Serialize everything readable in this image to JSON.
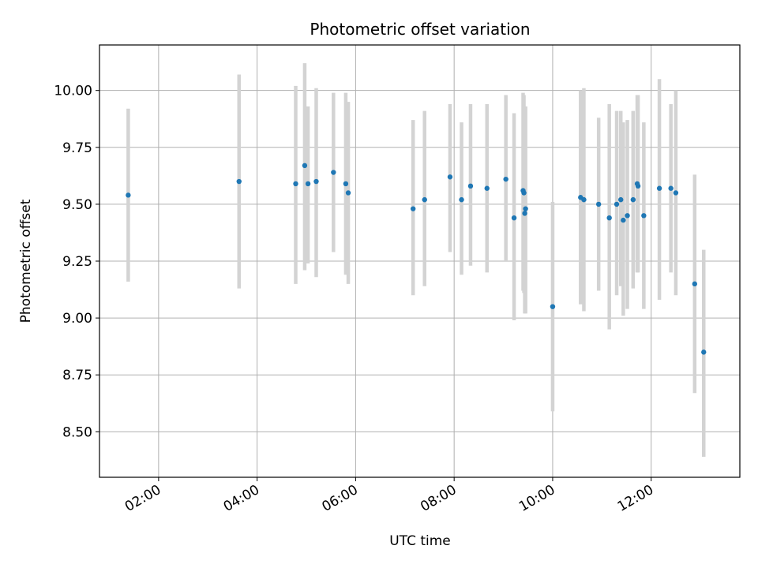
{
  "chart_data": {
    "type": "scatter",
    "title": "Photometric offset variation",
    "xlabel": "UTC time",
    "ylabel": "Photometric offset",
    "x_axis": {
      "kind": "time",
      "range": [
        "00:48",
        "13:48"
      ],
      "ticks": [
        "02:00",
        "04:00",
        "06:00",
        "08:00",
        "10:00",
        "12:00"
      ]
    },
    "y_axis": {
      "range": [
        8.3,
        10.2
      ],
      "ticks": [
        "8.50",
        "8.75",
        "9.00",
        "9.25",
        "9.50",
        "9.75",
        "10.00"
      ]
    },
    "grid": true,
    "colors": {
      "marker": "#1f77b4",
      "errorbar": "#d3d3d3",
      "grid": "#b0b0b0"
    },
    "series": [
      {
        "points": [
          {
            "x": "01:23",
            "y": 9.54,
            "ylow": 9.16,
            "yhigh": 9.92
          },
          {
            "x": "03:38",
            "y": 9.6,
            "ylow": 9.13,
            "yhigh": 10.07
          },
          {
            "x": "04:47",
            "y": 9.59,
            "ylow": 9.15,
            "yhigh": 10.02
          },
          {
            "x": "04:58",
            "y": 9.67,
            "ylow": 9.21,
            "yhigh": 10.12
          },
          {
            "x": "05:02",
            "y": 9.59,
            "ylow": 9.24,
            "yhigh": 9.93
          },
          {
            "x": "05:12",
            "y": 9.6,
            "ylow": 9.18,
            "yhigh": 10.01
          },
          {
            "x": "05:33",
            "y": 9.64,
            "ylow": 9.29,
            "yhigh": 9.99
          },
          {
            "x": "05:48",
            "y": 9.59,
            "ylow": 9.19,
            "yhigh": 9.99
          },
          {
            "x": "05:51",
            "y": 9.55,
            "ylow": 9.15,
            "yhigh": 9.95
          },
          {
            "x": "07:10",
            "y": 9.48,
            "ylow": 9.1,
            "yhigh": 9.87
          },
          {
            "x": "07:24",
            "y": 9.52,
            "ylow": 9.14,
            "yhigh": 9.91
          },
          {
            "x": "07:55",
            "y": 9.62,
            "ylow": 9.29,
            "yhigh": 9.94
          },
          {
            "x": "08:09",
            "y": 9.52,
            "ylow": 9.19,
            "yhigh": 9.86
          },
          {
            "x": "08:20",
            "y": 9.58,
            "ylow": 9.23,
            "yhigh": 9.94
          },
          {
            "x": "08:40",
            "y": 9.57,
            "ylow": 9.2,
            "yhigh": 9.94
          },
          {
            "x": "09:03",
            "y": 9.61,
            "ylow": 9.25,
            "yhigh": 9.98
          },
          {
            "x": "09:13",
            "y": 9.44,
            "ylow": 8.99,
            "yhigh": 9.9
          },
          {
            "x": "09:24",
            "y": 9.56,
            "ylow": 9.12,
            "yhigh": 9.99
          },
          {
            "x": "09:25",
            "y": 9.55,
            "ylow": 9.11,
            "yhigh": 9.98
          },
          {
            "x": "09:26",
            "y": 9.46,
            "ylow": 9.02,
            "yhigh": 9.89
          },
          {
            "x": "09:27",
            "y": 9.48,
            "ylow": 9.02,
            "yhigh": 9.93
          },
          {
            "x": "10:00",
            "y": 9.05,
            "ylow": 8.59,
            "yhigh": 9.51
          },
          {
            "x": "10:34",
            "y": 9.53,
            "ylow": 9.06,
            "yhigh": 10.0
          },
          {
            "x": "10:38",
            "y": 9.52,
            "ylow": 9.03,
            "yhigh": 10.01
          },
          {
            "x": "10:56",
            "y": 9.5,
            "ylow": 9.12,
            "yhigh": 9.88
          },
          {
            "x": "11:09",
            "y": 9.44,
            "ylow": 8.95,
            "yhigh": 9.94
          },
          {
            "x": "11:18",
            "y": 9.5,
            "ylow": 9.1,
            "yhigh": 9.91
          },
          {
            "x": "11:23",
            "y": 9.52,
            "ylow": 9.14,
            "yhigh": 9.91
          },
          {
            "x": "11:26",
            "y": 9.43,
            "ylow": 9.01,
            "yhigh": 9.86
          },
          {
            "x": "11:31",
            "y": 9.45,
            "ylow": 9.04,
            "yhigh": 9.87
          },
          {
            "x": "11:38",
            "y": 9.52,
            "ylow": 9.13,
            "yhigh": 9.91
          },
          {
            "x": "11:43",
            "y": 9.59,
            "ylow": 9.2,
            "yhigh": 9.98
          },
          {
            "x": "11:44",
            "y": 9.58,
            "ylow": 9.2,
            "yhigh": 9.98
          },
          {
            "x": "11:51",
            "y": 9.45,
            "ylow": 9.04,
            "yhigh": 9.86
          },
          {
            "x": "12:10",
            "y": 9.57,
            "ylow": 9.08,
            "yhigh": 10.05
          },
          {
            "x": "12:24",
            "y": 9.57,
            "ylow": 9.2,
            "yhigh": 9.94
          },
          {
            "x": "12:30",
            "y": 9.55,
            "ylow": 9.1,
            "yhigh": 10.0
          },
          {
            "x": "12:53",
            "y": 9.15,
            "ylow": 8.67,
            "yhigh": 9.63
          },
          {
            "x": "13:04",
            "y": 8.85,
            "ylow": 8.39,
            "yhigh": 9.3
          }
        ]
      }
    ]
  }
}
